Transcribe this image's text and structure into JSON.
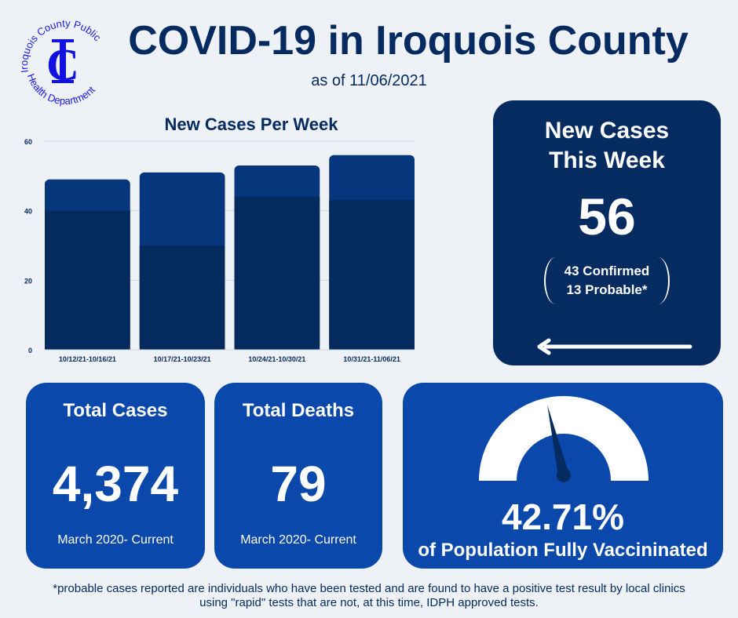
{
  "logo": {
    "text_top": "Iroquois County Public",
    "text_bottom": "Health Department",
    "monogram": "IC"
  },
  "header": {
    "title": "COVID-19 in Iroquois County",
    "as_of": "as of 11/06/2021"
  },
  "chart_data": {
    "type": "bar",
    "stacked": true,
    "title": "New Cases Per Week",
    "categories": [
      "10/12/21-10/16/21",
      "10/17/21-10/23/21",
      "10/24/21-10/30/21",
      "10/31/21-11/06/21"
    ],
    "series": [
      {
        "name": "Confirmed",
        "values": [
          40,
          30,
          44,
          43
        ],
        "color": "#042a5e"
      },
      {
        "name": "Probable",
        "values": [
          9,
          21,
          9,
          13
        ],
        "color": "#06367c"
      }
    ],
    "ylim": [
      0,
      60
    ],
    "yticks": [
      0,
      20,
      40,
      60
    ],
    "grid": true,
    "xlabel": "",
    "ylabel": ""
  },
  "new_cases": {
    "title_line1": "New Cases",
    "title_line2": "This Week",
    "value": "56",
    "confirmed": "43 Confirmed",
    "probable": "13 Probable*"
  },
  "total_cases": {
    "title": "Total Cases",
    "value": "4,374",
    "period": "March 2020- Current"
  },
  "total_deaths": {
    "title": "Total Deaths",
    "value": "79",
    "period": "March 2020- Current"
  },
  "vaccination": {
    "value": "42.71%",
    "label": "of Population Fully Vaccininated",
    "fraction": 0.4271
  },
  "footnote": "*probable cases reported  are individuals who have been tested and are found to have a positive test result by local clinics using \"rapid\" tests that are not, at this time, IDPH approved tests."
}
